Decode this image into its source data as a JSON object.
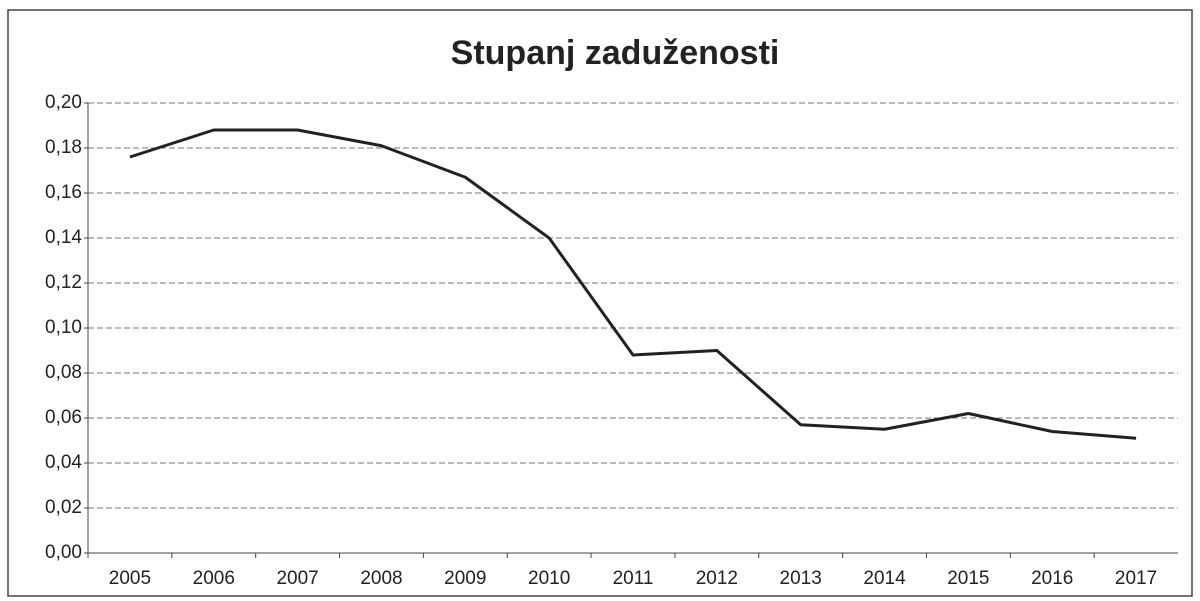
{
  "chart_data": {
    "type": "line",
    "title": "Stupanj zaduženosti",
    "categories": [
      "2005",
      "2006",
      "2007",
      "2008",
      "2009",
      "2010",
      "2011",
      "2012",
      "2013",
      "2014",
      "2015",
      "2016",
      "2017"
    ],
    "values": [
      0.176,
      0.188,
      0.188,
      0.181,
      0.167,
      0.14,
      0.088,
      0.09,
      0.057,
      0.055,
      0.062,
      0.054,
      0.051
    ],
    "color": "#222222",
    "ylim": [
      0,
      0.2
    ],
    "yticks": [
      {
        "value": 0,
        "label": "0,00"
      },
      {
        "value": 0.02,
        "label": "0,02"
      },
      {
        "value": 0.04,
        "label": "0,04"
      },
      {
        "value": 0.06,
        "label": "0,06"
      },
      {
        "value": 0.08,
        "label": "0,08"
      },
      {
        "value": 0.1,
        "label": "0,10"
      },
      {
        "value": 0.12,
        "label": "0,12"
      },
      {
        "value": 0.14,
        "label": "0,14"
      },
      {
        "value": 0.16,
        "label": "0,16"
      },
      {
        "value": 0.18,
        "label": "0,18"
      },
      {
        "value": 0.2,
        "label": "0,20"
      }
    ],
    "grid": true
  }
}
